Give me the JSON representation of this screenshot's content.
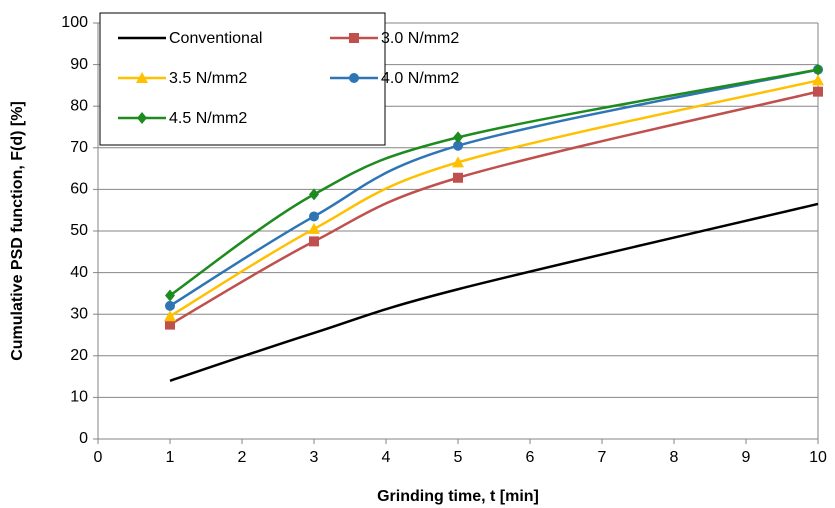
{
  "chart_data": {
    "type": "line",
    "x_label": "Grinding time, t [min]",
    "y_label": "Cumulative PSD function, F(d) [%]",
    "xlim": [
      0,
      10
    ],
    "xticks": [
      0,
      1,
      2,
      3,
      4,
      5,
      6,
      7,
      8,
      9,
      10
    ],
    "ylim": [
      0,
      100
    ],
    "yticks": [
      0,
      10,
      20,
      30,
      40,
      50,
      60,
      70,
      80,
      90,
      100
    ],
    "grid": true,
    "smooth": true,
    "legend": "upper left",
    "x": [
      1,
      3,
      5,
      10
    ],
    "series": [
      {
        "name": "Conventional",
        "color": "#000000",
        "values": [
          14,
          25.5,
          36,
          56.5
        ]
      },
      {
        "name": "3.0 N/mm2",
        "color": "#c0504d",
        "marker": "square",
        "values": [
          27.5,
          47.5,
          62.8,
          83.5
        ]
      },
      {
        "name": "3.5 N/mm2",
        "color": "#ffc000",
        "marker": "triangle",
        "values": [
          29.5,
          50.5,
          66.5,
          86.2
        ]
      },
      {
        "name": "4.0 N/mm2",
        "color": "#2e75b6",
        "marker": "circle",
        "values": [
          32,
          53.5,
          70.5,
          88.8
        ]
      },
      {
        "name": "4.5 N/mm2",
        "color": "#1e8b1e",
        "marker": "diamond",
        "values": [
          34.5,
          58.8,
          72.5,
          88.8
        ]
      }
    ]
  }
}
